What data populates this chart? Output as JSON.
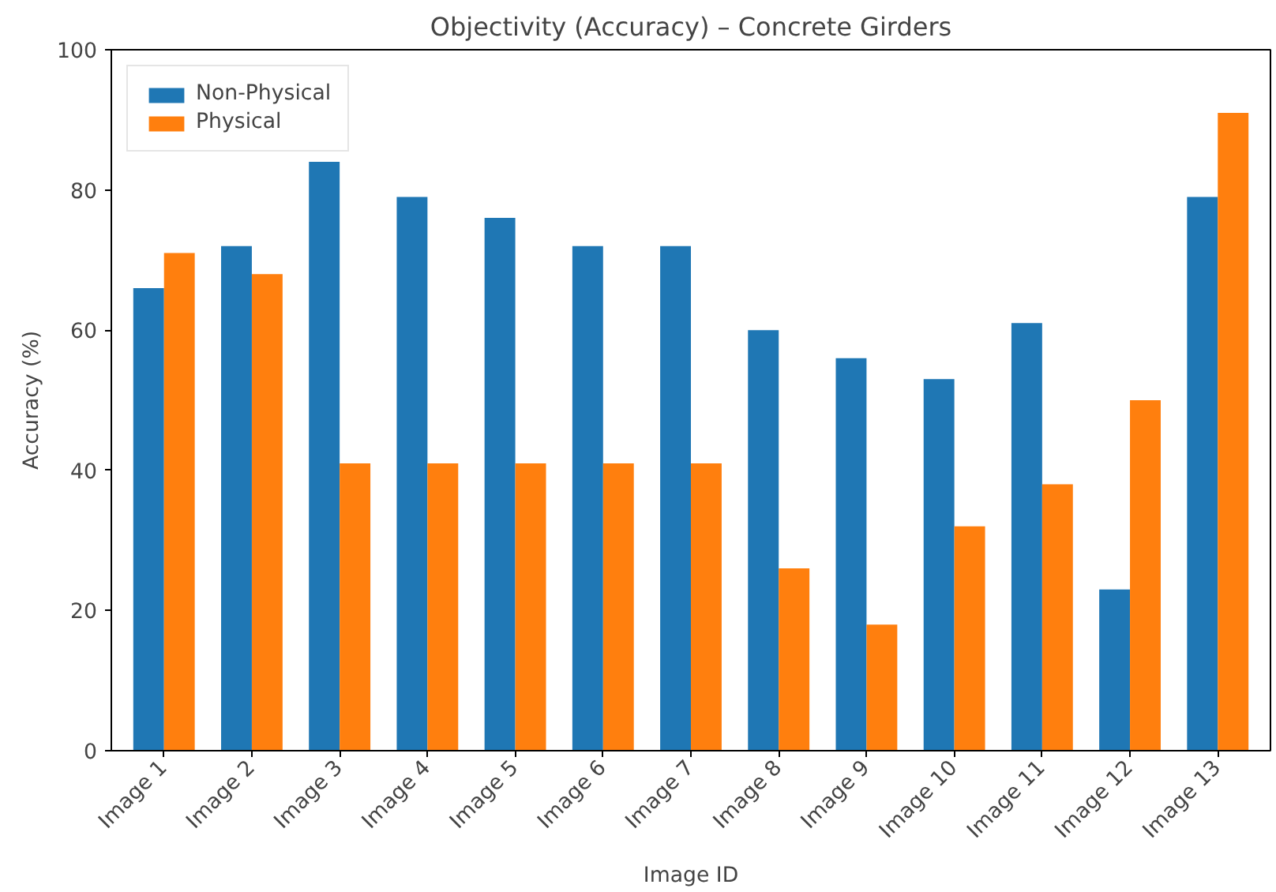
{
  "chart_data": {
    "type": "bar",
    "title": "Objectivity (Accuracy) – Concrete Girders",
    "xlabel": "Image ID",
    "ylabel": "Accuracy (%)",
    "categories": [
      "Image 1",
      "Image 2",
      "Image 3",
      "Image 4",
      "Image 5",
      "Image 6",
      "Image 7",
      "Image 8",
      "Image 9",
      "Image 10",
      "Image 11",
      "Image 12",
      "Image 13"
    ],
    "series": [
      {
        "name": "Non-Physical",
        "color": "#1f77b4",
        "values": [
          66,
          72,
          84,
          79,
          76,
          72,
          72,
          60,
          56,
          53,
          61,
          23,
          79
        ]
      },
      {
        "name": "Physical",
        "color": "#ff7f0e",
        "values": [
          71,
          68,
          41,
          41,
          41,
          41,
          41,
          26,
          18,
          32,
          38,
          50,
          91
        ]
      }
    ],
    "ylim": [
      0,
      100
    ],
    "yticks": [
      0,
      20,
      40,
      60,
      80,
      100
    ],
    "grid": false,
    "legend": "top left"
  }
}
